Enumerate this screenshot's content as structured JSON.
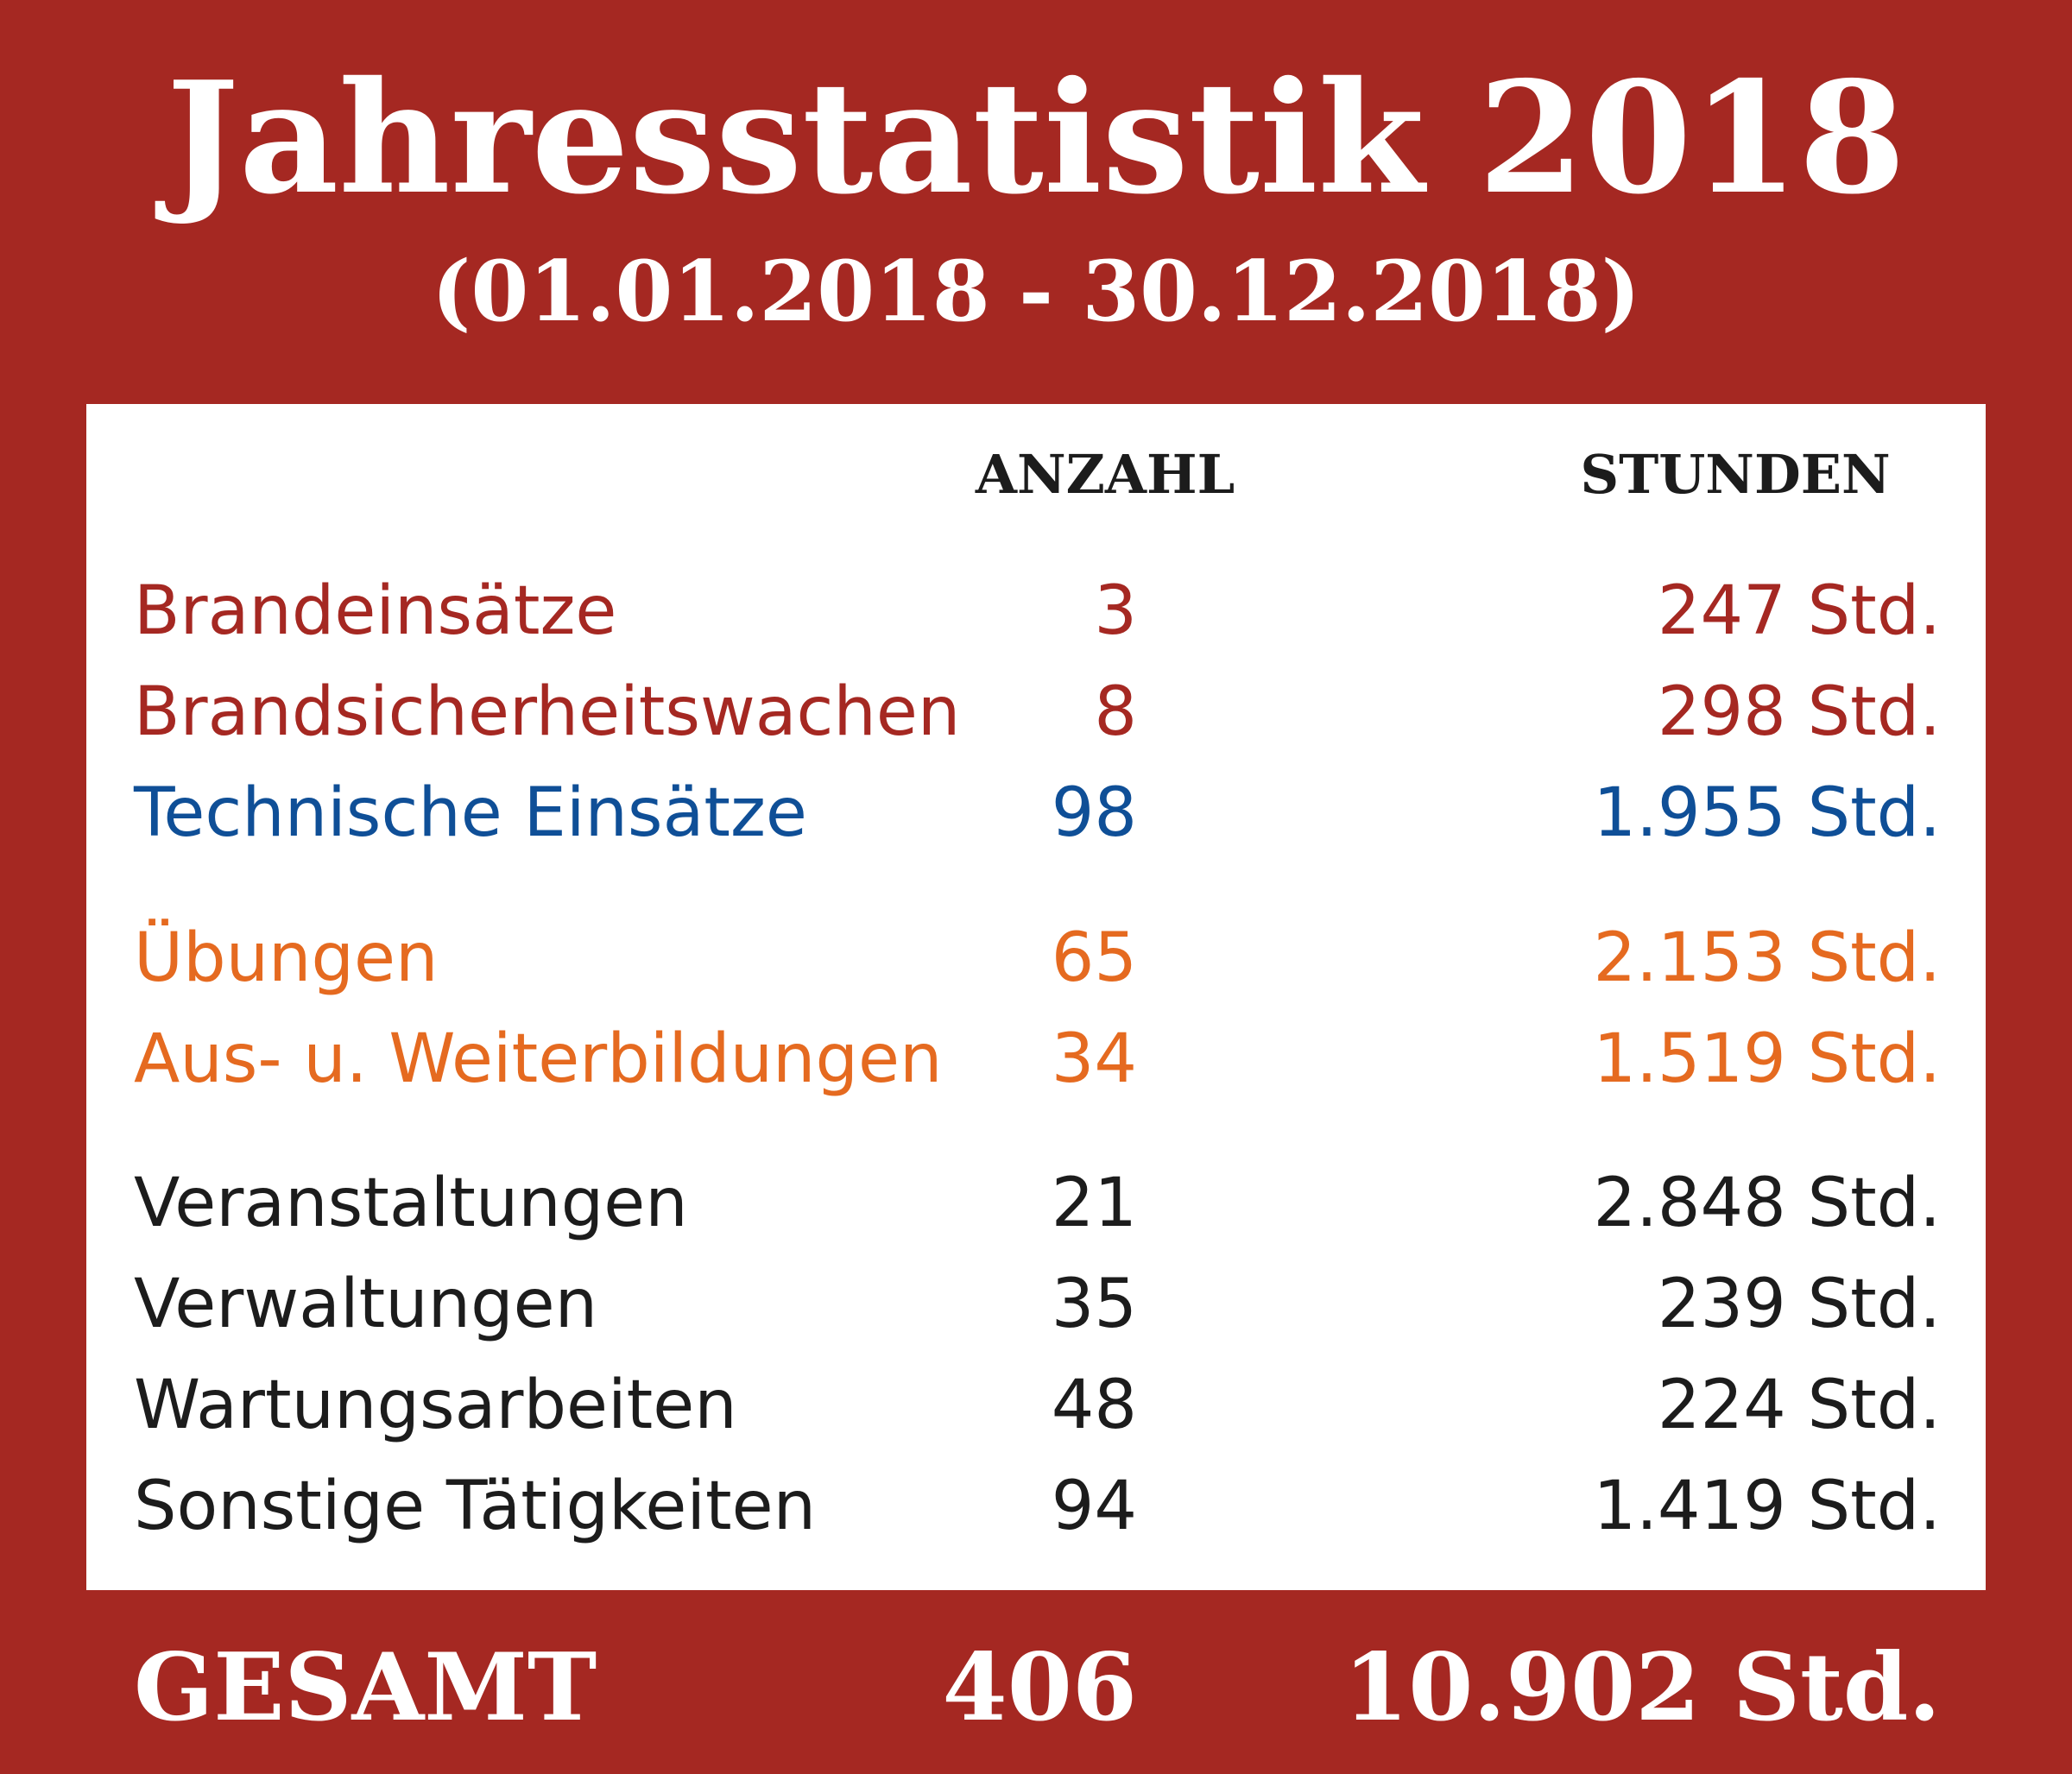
{
  "title": "Jahresstatistik 2018",
  "subtitle": "(01.01.2018 - 30.12.2018)",
  "columns": {
    "anzahl": "ANZAHL",
    "stunden": "STUNDEN"
  },
  "colors": {
    "background": "#a52822",
    "red": "#a52822",
    "blue": "#0f4f97",
    "orange": "#e56a20",
    "black": "#1c1c1c"
  },
  "rows": [
    {
      "label": "Brandeinsätze",
      "count": "3",
      "hours": "247 Std.",
      "color": "red"
    },
    {
      "label": "Brandsicherheitswachen",
      "count": "8",
      "hours": "298 Std.",
      "color": "red"
    },
    {
      "label": "Technische Einsätze",
      "count": "98",
      "hours": "1.955 Std.",
      "color": "blue"
    },
    {
      "label": "Übungen",
      "count": "65",
      "hours": "2.153 Std.",
      "color": "orange"
    },
    {
      "label": "Aus- u. Weiterbildungen",
      "count": "34",
      "hours": "1.519 Std.",
      "color": "orange"
    },
    {
      "label": "Veranstaltungen",
      "count": "21",
      "hours": "2.848 Std.",
      "color": "black"
    },
    {
      "label": "Verwaltungen",
      "count": "35",
      "hours": "239 Std.",
      "color": "black"
    },
    {
      "label": "Wartungsarbeiten",
      "count": "48",
      "hours": "224 Std.",
      "color": "black"
    },
    {
      "label": "Sonstige Tätigkeiten",
      "count": "94",
      "hours": "1.419 Std.",
      "color": "black"
    }
  ],
  "total": {
    "label": "GESAMT",
    "count": "406",
    "hours": "10.902 Std."
  }
}
